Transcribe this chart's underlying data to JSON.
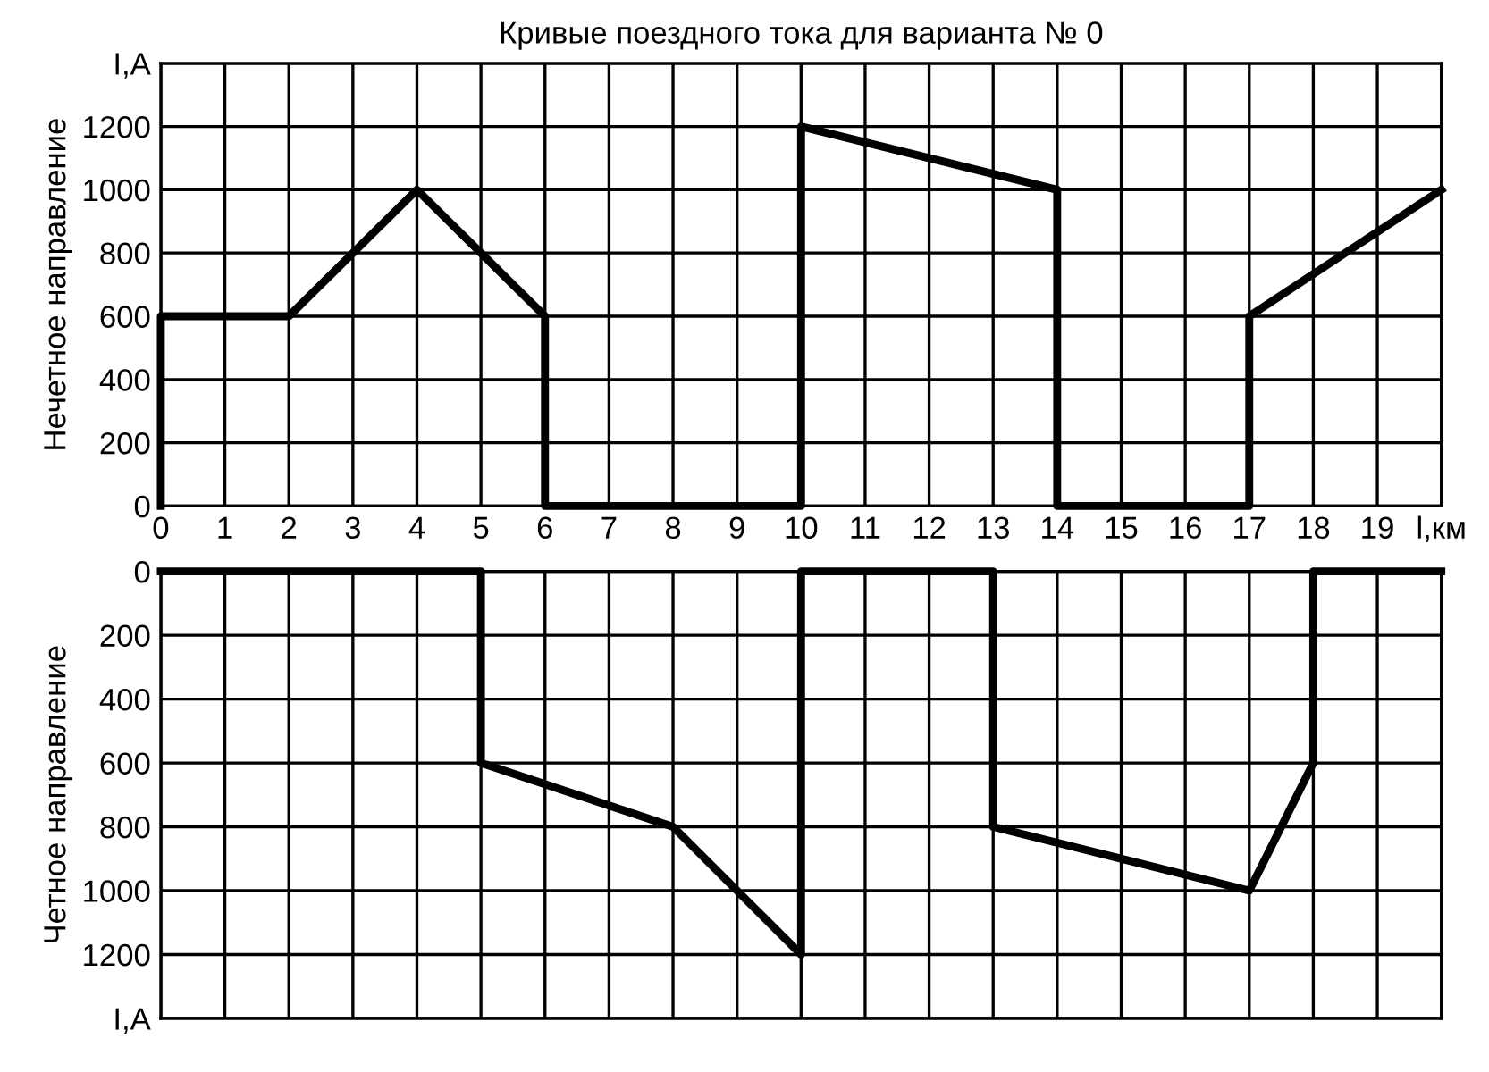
{
  "chart_data": [
    {
      "type": "line",
      "title": "Кривые поездного тока для варианта № 0",
      "ylabel": "Нечетное направление",
      "x": [
        0,
        0,
        2,
        4,
        6,
        6,
        10,
        10,
        14,
        14,
        17,
        17,
        20
      ],
      "series": [
        {
          "color": "#000000",
          "values": [
            0,
            600,
            600,
            1000,
            600,
            0,
            0,
            1200,
            1000,
            0,
            0,
            600,
            1000
          ]
        }
      ],
      "xlim": [
        0,
        20
      ],
      "xticks": [
        0,
        1,
        2,
        3,
        4,
        5,
        6,
        7,
        8,
        9,
        10,
        11,
        12,
        13,
        14,
        15,
        16,
        17,
        18,
        19,
        {
          "value": 20,
          "label": "l,км"
        }
      ],
      "ylim": [
        0,
        1400
      ],
      "yticks": [
        0,
        200,
        400,
        600,
        800,
        1000,
        1200,
        {
          "value": 1400,
          "label": "I,A"
        }
      ],
      "grid": true,
      "marker": "none",
      "line_style": "solid"
    },
    {
      "type": "line",
      "ylabel": "Четное направление",
      "x": [
        0,
        5,
        5,
        8,
        10,
        10,
        13,
        13,
        17,
        18,
        18,
        20
      ],
      "series": [
        {
          "color": "#000000",
          "values": [
            0,
            0,
            600,
            800,
            1200,
            0,
            0,
            800,
            1000,
            600,
            0,
            0
          ]
        }
      ],
      "xlim": [
        0,
        20
      ],
      "xticks": [
        0,
        1,
        2,
        3,
        4,
        5,
        6,
        7,
        8,
        9,
        10,
        11,
        12,
        13,
        14,
        15,
        16,
        17,
        18,
        19,
        20
      ],
      "ylim": [
        1400,
        0
      ],
      "yticks": [
        0,
        200,
        400,
        600,
        800,
        1000,
        1200,
        {
          "value": 1400,
          "label": "I,A"
        }
      ],
      "tick_labels": "y",
      "grid": true,
      "marker": "none",
      "line_style": "solid"
    }
  ]
}
